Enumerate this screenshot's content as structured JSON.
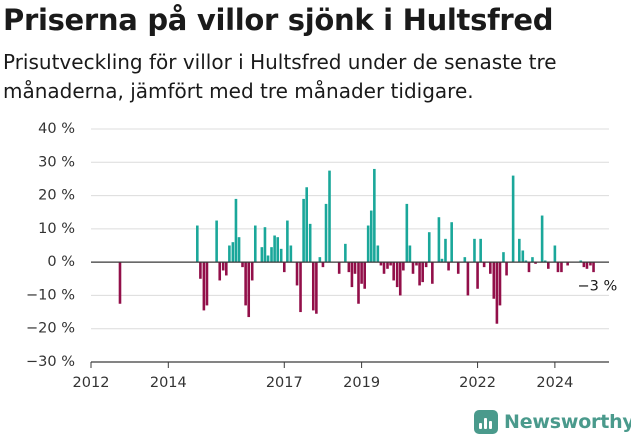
{
  "title": "Priserna på villor sjönk i Hultsfred",
  "subtitle": "Prisutveckling för villor i Hultsfred under de senaste tre månaderna, jämfört med tre månader tidigare.",
  "brand": "Newsworthy",
  "colors": {
    "positive": "#1aa79a",
    "negative": "#920f49",
    "brand": "#4a9a8c"
  },
  "chart_data": {
    "type": "bar",
    "title": "Priserna på villor sjönk i Hultsfred",
    "xlabel": "",
    "ylabel": "",
    "ylim": [
      -30,
      40
    ],
    "yticks": [
      40,
      30,
      20,
      10,
      0,
      -10,
      -20,
      -30
    ],
    "ytick_labels": [
      "40 %",
      "30 %",
      "20 %",
      "10 %",
      "0 %",
      "−10 %",
      "−20 %",
      "−30 %"
    ],
    "xlim": [
      2012,
      2025.4
    ],
    "xticks": [
      2012,
      2014,
      2017,
      2019,
      2022,
      2024
    ],
    "xtick_labels": [
      "2012",
      "2014",
      "2017",
      "2019",
      "2022",
      "2024"
    ],
    "grid": true,
    "annotation": {
      "text": "−3 %",
      "x": 2025.1,
      "y": -8.5
    },
    "x": [
      2012.75,
      2014.75,
      2014.83,
      2014.92,
      2015.0,
      2015.25,
      2015.33,
      2015.42,
      2015.5,
      2015.58,
      2015.67,
      2015.75,
      2015.83,
      2015.92,
      2016.0,
      2016.08,
      2016.17,
      2016.25,
      2016.42,
      2016.5,
      2016.58,
      2016.67,
      2016.75,
      2016.83,
      2016.92,
      2017.0,
      2017.08,
      2017.17,
      2017.33,
      2017.42,
      2017.5,
      2017.58,
      2017.67,
      2017.75,
      2017.83,
      2017.92,
      2018.0,
      2018.08,
      2018.17,
      2018.42,
      2018.58,
      2018.67,
      2018.75,
      2018.83,
      2018.92,
      2019.0,
      2019.08,
      2019.17,
      2019.25,
      2019.33,
      2019.42,
      2019.5,
      2019.58,
      2019.67,
      2019.75,
      2019.83,
      2019.92,
      2020.0,
      2020.08,
      2020.17,
      2020.25,
      2020.33,
      2020.42,
      2020.5,
      2020.58,
      2020.67,
      2020.75,
      2020.83,
      2021.0,
      2021.08,
      2021.17,
      2021.25,
      2021.33,
      2021.5,
      2021.67,
      2021.75,
      2021.92,
      2022.0,
      2022.08,
      2022.17,
      2022.33,
      2022.42,
      2022.5,
      2022.58,
      2022.67,
      2022.75,
      2022.92,
      2023.08,
      2023.17,
      2023.25,
      2023.33,
      2023.42,
      2023.5,
      2023.67,
      2023.75,
      2023.83,
      2024.0,
      2024.08,
      2024.17,
      2024.33,
      2024.67,
      2024.75,
      2024.83,
      2024.92,
      2025.0
    ],
    "values": [
      -12.5,
      11.0,
      -5.0,
      -14.5,
      -13.0,
      12.5,
      -5.5,
      -2.5,
      -4.0,
      5.0,
      6.0,
      19.0,
      7.5,
      -1.5,
      -13.0,
      -16.5,
      -5.5,
      11.0,
      4.5,
      10.5,
      2.0,
      4.5,
      8.0,
      7.5,
      4.0,
      -3.0,
      12.5,
      5.0,
      -7.0,
      -15.0,
      19.0,
      22.5,
      11.5,
      -14.5,
      -15.5,
      1.5,
      -1.5,
      17.5,
      27.5,
      -3.5,
      5.5,
      -3.0,
      -7.5,
      -3.5,
      -12.5,
      -6.5,
      -8.0,
      11.0,
      15.5,
      28.0,
      5.0,
      -1.0,
      -3.5,
      -2.0,
      -1.0,
      -5.5,
      -7.5,
      -10.0,
      -2.5,
      17.5,
      5.0,
      -3.5,
      -1.0,
      -7.0,
      -6.0,
      -1.5,
      9.0,
      -6.5,
      13.5,
      1.0,
      7.0,
      -2.5,
      12.0,
      -3.5,
      1.5,
      -10.0,
      7.0,
      -8.0,
      7.0,
      -1.5,
      -3.5,
      -11.0,
      -18.5,
      -13.0,
      3.0,
      -4.0,
      26.0,
      7.0,
      3.5,
      0.5,
      -3.0,
      1.5,
      -0.5,
      14.0,
      0.5,
      -2.0,
      5.0,
      -3.0,
      -3.0,
      -1.0,
      0.5,
      -1.5,
      -2.0,
      -1.0,
      -3.0
    ]
  }
}
